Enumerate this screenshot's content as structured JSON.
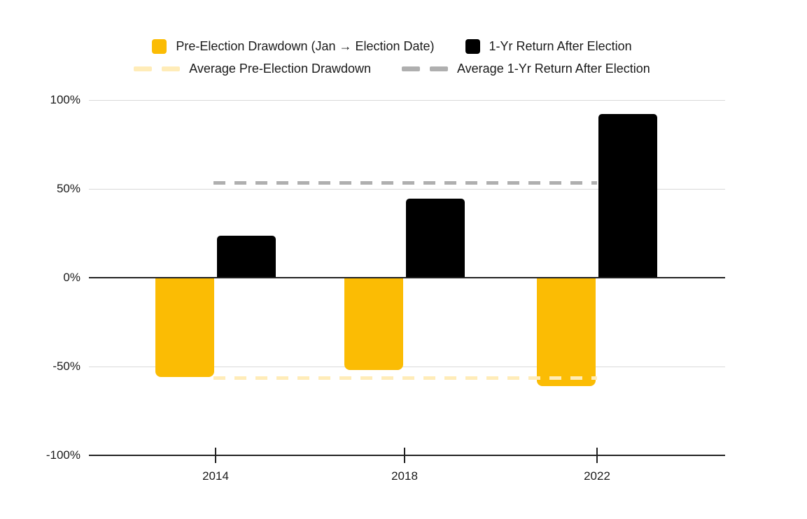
{
  "legend": {
    "items": [
      {
        "label": "Pre-Election Drawdown (Jan → Election Date)",
        "swatch": "square",
        "color": "#FBBC04"
      },
      {
        "label": "1-Yr Return After Election",
        "swatch": "square",
        "color": "#000000"
      },
      {
        "label": "Average Pre-Election Drawdown",
        "swatch": "dash",
        "color": "#FFECB8"
      },
      {
        "label": "Average 1-Yr Return After Election",
        "swatch": "dash",
        "color": "#AFAFAF"
      }
    ]
  },
  "chart_data": {
    "type": "bar",
    "title": "",
    "categories": [
      "2014",
      "2018",
      "2022"
    ],
    "series": [
      {
        "name": "Pre-Election Drawdown (Jan → Election Date)",
        "color": "#FBBC04",
        "values": [
          -56,
          -52,
          -61
        ]
      },
      {
        "name": "1-Yr Return After Election",
        "color": "#000000",
        "values": [
          23.5,
          44.5,
          92
        ]
      }
    ],
    "average_lines": [
      {
        "name": "Average Pre-Election Drawdown",
        "color": "#FFECB8",
        "value": -56.3,
        "style": "dashed"
      },
      {
        "name": "Average 1-Yr Return After Election",
        "color": "#AFAFAF",
        "value": 53.3,
        "style": "dashed"
      }
    ],
    "y_axis": {
      "tick_labels": [
        "100%",
        "50%",
        "0%",
        "-50%",
        "-100%"
      ],
      "tick_values": [
        100,
        50,
        0,
        -50,
        -100
      ],
      "ylim": [
        -100,
        100
      ]
    },
    "x_axis": {
      "tick_labels": [
        "2014",
        "2018",
        "2022"
      ]
    },
    "grid": true,
    "legend_position": "top",
    "colors": {
      "gridline": "#d9d9d9",
      "axis": "#212121",
      "text": "#1a1a1a",
      "background": "#ffffff"
    }
  }
}
